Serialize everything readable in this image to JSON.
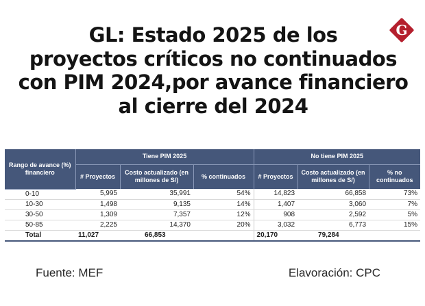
{
  "title_lines": [
    "GL: Estado 2025 de los",
    "proyectos críticos no continuados",
    "con PIM 2024,por avance financiero",
    "al cierre del 2024"
  ],
  "logo": {
    "letter": "G",
    "color": "#b5202e"
  },
  "colors": {
    "header_bg": "#45577a",
    "header_text": "#ffffff"
  },
  "table": {
    "range_header": "Rango de avance (%) financiero",
    "group_headers": [
      "Tiene PIM 2025",
      "No tiene PIM 2025"
    ],
    "sub_headers": [
      "# Proyectos",
      "Costo actualizado (en millones de S/)",
      "% continuados",
      "# Proyectos",
      "Costo actualizado (en millones de S/)",
      "% no continuados"
    ],
    "rows": [
      [
        "0-10",
        "5,995",
        "35,991",
        "54%",
        "14,823",
        "66,858",
        "73%"
      ],
      [
        "10-30",
        "1,498",
        "9,135",
        "14%",
        "1,407",
        "3,060",
        "7%"
      ],
      [
        "30-50",
        "1,309",
        "7,357",
        "12%",
        "908",
        "2,592",
        "5%"
      ],
      [
        "50-85",
        "2,225",
        "14,370",
        "20%",
        "3,032",
        "6,773",
        "15%"
      ]
    ],
    "total": [
      "Total",
      "11,027",
      "66,853",
      "",
      "20,170",
      "79,284",
      ""
    ]
  },
  "footer": {
    "source": "Fuente: MEF",
    "credit": "Elavoración: CPC"
  }
}
